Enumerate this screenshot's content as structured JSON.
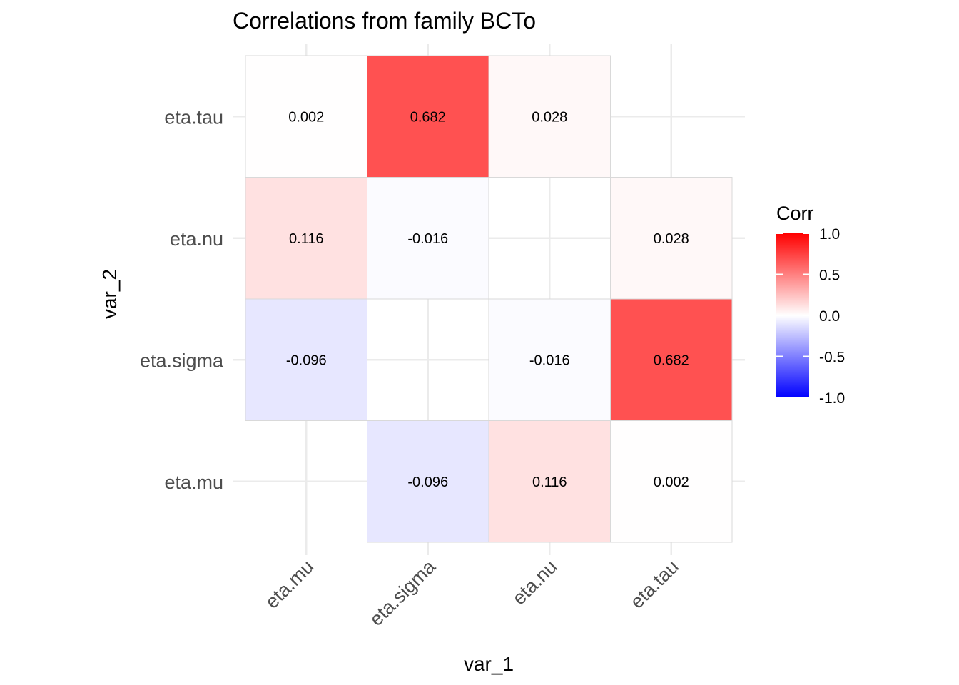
{
  "chart_data": {
    "type": "heatmap",
    "title": "Correlations from family BCTo",
    "xlabel": "var_1",
    "ylabel": "var_2",
    "x_categories": [
      "eta.mu",
      "eta.sigma",
      "eta.nu",
      "eta.tau"
    ],
    "y_categories": [
      "eta.mu",
      "eta.sigma",
      "eta.nu",
      "eta.tau"
    ],
    "cells": [
      {
        "x": "eta.sigma",
        "y": "eta.mu",
        "value": -0.096,
        "label": "-0.096"
      },
      {
        "x": "eta.nu",
        "y": "eta.mu",
        "value": 0.116,
        "label": "0.116"
      },
      {
        "x": "eta.tau",
        "y": "eta.mu",
        "value": 0.002,
        "label": "0.002"
      },
      {
        "x": "eta.mu",
        "y": "eta.sigma",
        "value": -0.096,
        "label": "-0.096"
      },
      {
        "x": "eta.nu",
        "y": "eta.sigma",
        "value": -0.016,
        "label": "-0.016"
      },
      {
        "x": "eta.tau",
        "y": "eta.sigma",
        "value": 0.682,
        "label": "0.682"
      },
      {
        "x": "eta.mu",
        "y": "eta.nu",
        "value": 0.116,
        "label": "0.116"
      },
      {
        "x": "eta.sigma",
        "y": "eta.nu",
        "value": -0.016,
        "label": "-0.016"
      },
      {
        "x": "eta.tau",
        "y": "eta.nu",
        "value": 0.028,
        "label": "0.028"
      },
      {
        "x": "eta.mu",
        "y": "eta.tau",
        "value": 0.002,
        "label": "0.002"
      },
      {
        "x": "eta.sigma",
        "y": "eta.tau",
        "value": 0.682,
        "label": "0.682"
      },
      {
        "x": "eta.nu",
        "y": "eta.tau",
        "value": 0.028,
        "label": "0.028"
      }
    ],
    "legend": {
      "title": "Corr",
      "ticks": [
        {
          "value": 1.0,
          "label": "1.0"
        },
        {
          "value": 0.5,
          "label": "0.5"
        },
        {
          "value": 0.0,
          "label": "0.0"
        },
        {
          "value": -0.5,
          "label": "-0.5"
        },
        {
          "value": -1.0,
          "label": "-1.0"
        }
      ],
      "placement": "right",
      "colors": {
        "low": "#0000ff",
        "mid": "#ffffff",
        "high": "#ff0000"
      }
    },
    "value_range": [
      -1,
      1
    ],
    "grid": true
  }
}
